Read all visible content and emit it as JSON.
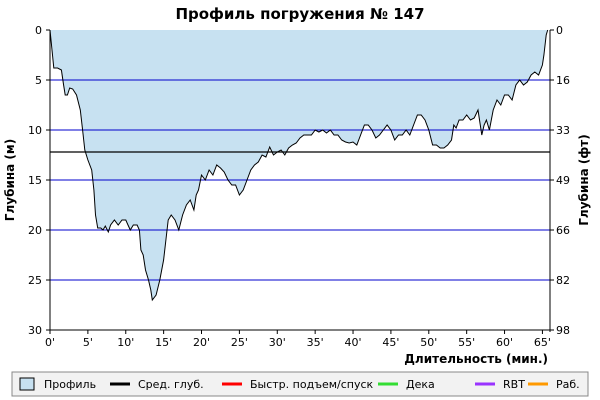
{
  "chart_data": {
    "type": "area",
    "title": "Профиль погружения № 147",
    "xlabel": "Длительность (мин.)",
    "ylabel_left": "Глубина (м)",
    "ylabel_right": "Глубина (фт)",
    "x_range": [
      0,
      66
    ],
    "y_range": [
      0,
      30
    ],
    "y_inverted": true,
    "x_ticks": [
      "0'",
      "5'",
      "10'",
      "15'",
      "20'",
      "25'",
      "30'",
      "35'",
      "40'",
      "45'",
      "50'",
      "55'",
      "60'",
      "65'"
    ],
    "y_ticks_left": [
      "0",
      "5",
      "10",
      "15",
      "20",
      "25",
      "30"
    ],
    "y_ticks_right": [
      "0",
      "16",
      "33",
      "49",
      "66",
      "82",
      "98"
    ],
    "average_depth": 12.2,
    "grid": true,
    "series": [
      {
        "name": "Профиль",
        "color": "#c7e1f1",
        "line_color": "#000000",
        "points": [
          [
            0,
            0
          ],
          [
            0.2,
            1.5
          ],
          [
            0.5,
            3.8
          ],
          [
            1.0,
            3.8
          ],
          [
            1.5,
            4.0
          ],
          [
            1.8,
            5.5
          ],
          [
            2.0,
            6.5
          ],
          [
            2.3,
            6.5
          ],
          [
            2.6,
            5.8
          ],
          [
            3.0,
            5.9
          ],
          [
            3.5,
            6.5
          ],
          [
            4.0,
            8.0
          ],
          [
            4.3,
            10.0
          ],
          [
            4.6,
            12.0
          ],
          [
            5.0,
            13.0
          ],
          [
            5.5,
            14.0
          ],
          [
            5.8,
            16.0
          ],
          [
            6.0,
            18.5
          ],
          [
            6.3,
            19.8
          ],
          [
            6.7,
            19.8
          ],
          [
            7.0,
            20.0
          ],
          [
            7.3,
            19.6
          ],
          [
            7.7,
            20.2
          ],
          [
            8.0,
            19.5
          ],
          [
            8.5,
            19.0
          ],
          [
            9.0,
            19.5
          ],
          [
            9.5,
            19.0
          ],
          [
            10.0,
            19.0
          ],
          [
            10.3,
            19.5
          ],
          [
            10.6,
            20.0
          ],
          [
            11.0,
            19.5
          ],
          [
            11.5,
            19.5
          ],
          [
            11.8,
            20.0
          ],
          [
            12.0,
            22.0
          ],
          [
            12.3,
            22.5
          ],
          [
            12.6,
            24.0
          ],
          [
            13.0,
            25.0
          ],
          [
            13.3,
            26.0
          ],
          [
            13.5,
            27.0
          ],
          [
            14.0,
            26.5
          ],
          [
            14.5,
            25.0
          ],
          [
            15.0,
            23.0
          ],
          [
            15.3,
            21.0
          ],
          [
            15.6,
            19.0
          ],
          [
            16.0,
            18.5
          ],
          [
            16.5,
            19.0
          ],
          [
            17.0,
            20.0
          ],
          [
            17.5,
            18.5
          ],
          [
            18.0,
            17.5
          ],
          [
            18.5,
            17.0
          ],
          [
            19.0,
            18.0
          ],
          [
            19.3,
            16.5
          ],
          [
            19.6,
            16.0
          ],
          [
            20.0,
            14.5
          ],
          [
            20.5,
            15.0
          ],
          [
            21.0,
            14.0
          ],
          [
            21.5,
            14.5
          ],
          [
            22.0,
            13.5
          ],
          [
            22.5,
            13.8
          ],
          [
            23.0,
            14.2
          ],
          [
            23.5,
            15.0
          ],
          [
            24.0,
            15.5
          ],
          [
            24.5,
            15.5
          ],
          [
            25.0,
            16.5
          ],
          [
            25.5,
            16.0
          ],
          [
            26.0,
            15.0
          ],
          [
            26.5,
            14.0
          ],
          [
            27.0,
            13.5
          ],
          [
            27.5,
            13.2
          ],
          [
            28.0,
            12.5
          ],
          [
            28.5,
            12.7
          ],
          [
            29.0,
            11.7
          ],
          [
            29.5,
            12.5
          ],
          [
            30.0,
            12.2
          ],
          [
            30.5,
            12.0
          ],
          [
            31.0,
            12.5
          ],
          [
            31.5,
            11.8
          ],
          [
            32.0,
            11.5
          ],
          [
            32.5,
            11.3
          ],
          [
            33.0,
            10.8
          ],
          [
            33.5,
            10.5
          ],
          [
            34.0,
            10.5
          ],
          [
            34.5,
            10.5
          ],
          [
            35.0,
            10.0
          ],
          [
            35.5,
            10.2
          ],
          [
            36.0,
            10.0
          ],
          [
            36.5,
            10.3
          ],
          [
            37.0,
            10.0
          ],
          [
            37.5,
            10.5
          ],
          [
            38.0,
            10.5
          ],
          [
            38.5,
            11.0
          ],
          [
            39.0,
            11.2
          ],
          [
            39.5,
            11.3
          ],
          [
            40.0,
            11.2
          ],
          [
            40.5,
            11.5
          ],
          [
            41.0,
            10.5
          ],
          [
            41.5,
            9.5
          ],
          [
            42.0,
            9.5
          ],
          [
            42.5,
            10.0
          ],
          [
            43.0,
            10.8
          ],
          [
            43.5,
            10.5
          ],
          [
            44.0,
            10.0
          ],
          [
            44.5,
            9.5
          ],
          [
            45.0,
            10.0
          ],
          [
            45.5,
            11.0
          ],
          [
            46.0,
            10.5
          ],
          [
            46.5,
            10.5
          ],
          [
            47.0,
            10.0
          ],
          [
            47.5,
            10.5
          ],
          [
            48.0,
            9.5
          ],
          [
            48.5,
            8.5
          ],
          [
            49.0,
            8.5
          ],
          [
            49.5,
            9.0
          ],
          [
            50.0,
            10.0
          ],
          [
            50.5,
            11.5
          ],
          [
            51.0,
            11.5
          ],
          [
            51.5,
            11.8
          ],
          [
            52.0,
            11.8
          ],
          [
            52.5,
            11.5
          ],
          [
            53.0,
            11.0
          ],
          [
            53.3,
            9.5
          ],
          [
            53.6,
            9.8
          ],
          [
            54.0,
            9.0
          ],
          [
            54.5,
            9.0
          ],
          [
            55.0,
            8.5
          ],
          [
            55.5,
            9.0
          ],
          [
            56.0,
            8.8
          ],
          [
            56.5,
            8.0
          ],
          [
            57.0,
            10.5
          ],
          [
            57.3,
            9.5
          ],
          [
            57.6,
            9.0
          ],
          [
            58.0,
            10.0
          ],
          [
            58.5,
            8.0
          ],
          [
            59.0,
            7.0
          ],
          [
            59.5,
            7.5
          ],
          [
            60.0,
            6.5
          ],
          [
            60.5,
            6.5
          ],
          [
            61.0,
            7.0
          ],
          [
            61.5,
            5.5
          ],
          [
            62.0,
            5.0
          ],
          [
            62.5,
            5.5
          ],
          [
            63.0,
            5.2
          ],
          [
            63.5,
            4.5
          ],
          [
            64.0,
            4.2
          ],
          [
            64.5,
            4.5
          ],
          [
            65.0,
            3.5
          ],
          [
            65.2,
            2.5
          ],
          [
            65.5,
            0.5
          ],
          [
            65.7,
            0
          ]
        ]
      }
    ]
  },
  "legend": [
    {
      "label": "Профиль",
      "kind": "box",
      "color": "#c7e1f1",
      "border": "#000000"
    },
    {
      "label": "Сред. глуб.",
      "kind": "line",
      "color": "#000000"
    },
    {
      "label": "Быстр. подъем/спуск",
      "kind": "line",
      "color": "#ff0000"
    },
    {
      "label": "Дека",
      "kind": "line",
      "color": "#33dd33"
    },
    {
      "label": "RBT",
      "kind": "line",
      "color": "#9933ff"
    },
    {
      "label": "Раб.",
      "kind": "line",
      "color": "#ff9900"
    }
  ],
  "colors": {
    "grid": "#0000cc",
    "avg_line": "#000000",
    "profile_fill": "#c7e1f1",
    "profile_line": "#000000",
    "legend_bg": "#f2f2f2",
    "legend_border": "#888888"
  }
}
